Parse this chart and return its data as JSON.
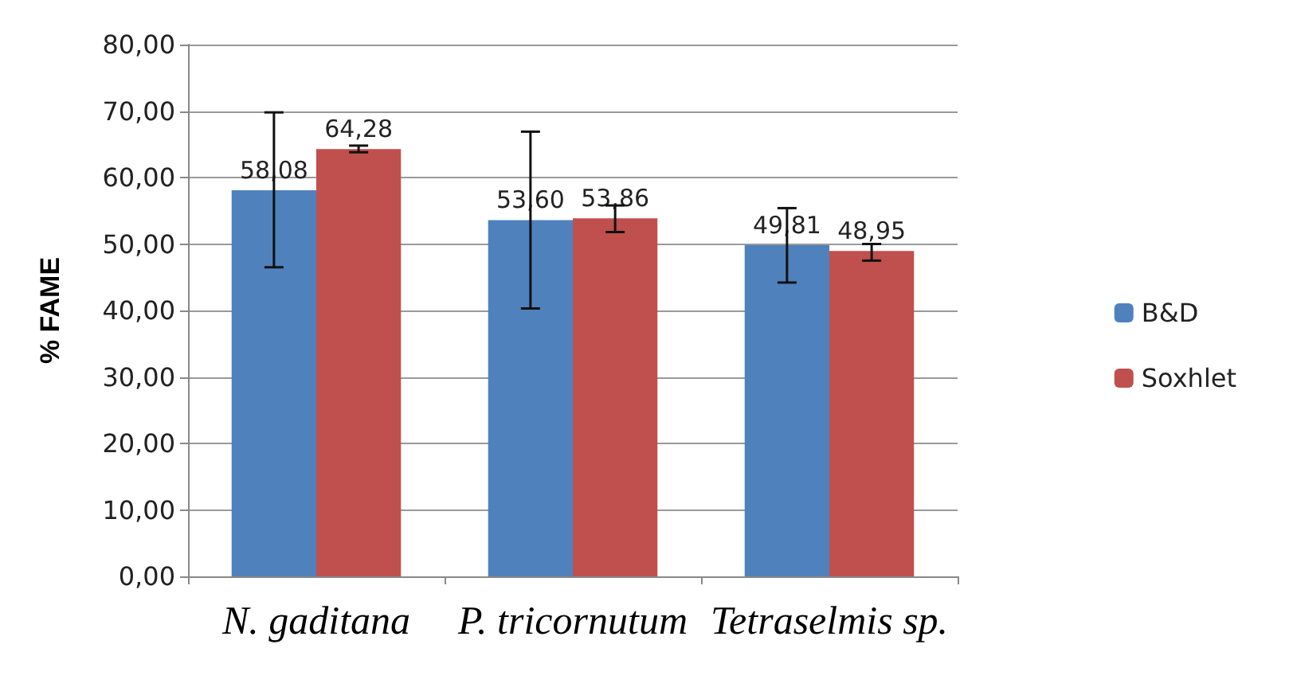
{
  "chart_data": {
    "type": "bar",
    "ylabel": "% FAME",
    "categories": [
      "N. gaditana",
      "P. tricornutum",
      "Tetraselmis sp."
    ],
    "series": [
      {
        "name": "B&D",
        "color": "#4f81bd",
        "values": [
          58.08,
          53.6,
          49.81
        ],
        "value_labels": [
          "58,08",
          "53,60",
          "49,81"
        ],
        "errors": [
          [
            46.5,
            69.8
          ],
          [
            40.3,
            66.9
          ],
          [
            44.2,
            55.4
          ]
        ]
      },
      {
        "name": "Soxhlet",
        "color": "#c0504d",
        "values": [
          64.28,
          53.86,
          48.95
        ],
        "value_labels": [
          "64,28",
          "53,86",
          "48,95"
        ],
        "errors": [
          [
            63.8,
            64.8
          ],
          [
            51.8,
            55.8
          ],
          [
            47.5,
            50.0
          ]
        ]
      }
    ],
    "ylim": [
      0,
      80
    ],
    "yticks": [
      {
        "value": 0,
        "label": "0,00"
      },
      {
        "value": 10,
        "label": "10,00"
      },
      {
        "value": 20,
        "label": "20,00"
      },
      {
        "value": 30,
        "label": "30,00"
      },
      {
        "value": 40,
        "label": "40,00"
      },
      {
        "value": 50,
        "label": "50,00"
      },
      {
        "value": 60,
        "label": "60,00"
      },
      {
        "value": 70,
        "label": "70,00"
      },
      {
        "value": 80,
        "label": "80,00"
      }
    ],
    "grid": "y",
    "legend": "right"
  }
}
